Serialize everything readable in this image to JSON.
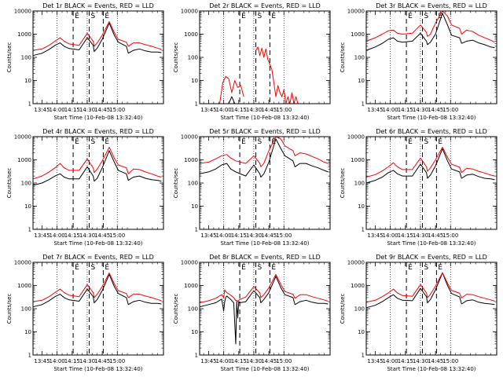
{
  "figure": {
    "xlabel": "Start Time (10-Feb-08 13:32:40)",
    "ylabel": "Counts/sec",
    "xticks": [
      "13:45",
      "14:00",
      "14:15",
      "14:30",
      "14:45",
      "15:00"
    ],
    "yticks": [
      "1",
      "10",
      "100",
      "1000",
      "10000"
    ],
    "flag_labels": [
      "E",
      "S",
      "E"
    ],
    "colors": {
      "events": "#000000",
      "lld": "#ff0000",
      "background": "#ffffff"
    }
  },
  "chart_data": [
    {
      "type": "line",
      "title": "Det 1r BLACK = Events, RED = LLD",
      "x_minutes": [
        36,
        45,
        52,
        58,
        63,
        67,
        72,
        82,
        90,
        96,
        97,
        100,
        105,
        112,
        117,
        121,
        129,
        131,
        136,
        142,
        148,
        154,
        160,
        164
      ],
      "series": [
        {
          "name": "Events",
          "color": "#000000",
          "values": [
            120,
            150,
            220,
            330,
            420,
            300,
            240,
            210,
            700,
            330,
            180,
            250,
            600,
            3000,
            900,
            450,
            300,
            150,
            200,
            230,
            190,
            170,
            170,
            160
          ]
        },
        {
          "name": "LLD",
          "color": "#ff0000",
          "values": [
            200,
            230,
            330,
            500,
            700,
            500,
            380,
            330,
            1100,
            500,
            300,
            420,
            900,
            3500,
            1200,
            600,
            450,
            300,
            420,
            420,
            350,
            300,
            250,
            220
          ]
        }
      ],
      "ylim": [
        1,
        10000
      ],
      "xlim": [
        36,
        166
      ]
    },
    {
      "type": "line",
      "title": "Det 2r BLACK = Events, RED = LLD",
      "x_minutes": [
        36,
        40,
        44,
        47,
        50,
        53,
        56,
        59,
        62,
        65,
        68,
        71,
        74,
        77,
        80,
        82,
        84,
        86,
        88,
        90,
        92,
        94,
        96,
        98,
        100,
        102,
        104,
        106,
        108,
        110,
        112,
        114,
        116,
        118,
        120,
        122,
        124,
        126,
        128,
        130,
        132,
        134,
        136,
        140,
        164
      ],
      "series": [
        {
          "name": "Events",
          "color": "#000000",
          "values": [
            null,
            null,
            null,
            null,
            null,
            null,
            null,
            null,
            null,
            1,
            2,
            1,
            1,
            null,
            null,
            null,
            null,
            null,
            null,
            null,
            null,
            null,
            null,
            null,
            null,
            null,
            null,
            null,
            null,
            null,
            null,
            null,
            null,
            null,
            null,
            null,
            null,
            null,
            null,
            null,
            null,
            null,
            null,
            null,
            null
          ]
        },
        {
          "name": "LLD",
          "color": "#ff0000",
          "values": [
            null,
            null,
            null,
            null,
            null,
            null,
            1,
            8,
            15,
            12,
            3,
            10,
            5,
            6,
            2,
            null,
            null,
            null,
            null,
            null,
            200,
            280,
            120,
            250,
            100,
            230,
            80,
            50,
            30,
            8,
            2,
            6,
            3,
            2,
            4,
            1,
            2,
            1,
            3,
            1,
            2,
            1,
            null,
            null,
            null
          ]
        }
      ],
      "ylim": [
        1,
        10000
      ],
      "xlim": [
        36,
        166
      ]
    },
    {
      "type": "line",
      "title": "Det 3r BLACK = Events, RED = LLD",
      "x_minutes": [
        36,
        45,
        52,
        58,
        63,
        67,
        72,
        82,
        90,
        96,
        97,
        100,
        105,
        112,
        117,
        121,
        129,
        131,
        136,
        142,
        148,
        154,
        160,
        164
      ],
      "series": [
        {
          "name": "Events",
          "color": "#000000",
          "values": [
            200,
            280,
            400,
            600,
            700,
            500,
            450,
            500,
            1100,
            500,
            350,
            450,
            1000,
            8000,
            2500,
            900,
            700,
            400,
            500,
            550,
            420,
            350,
            280,
            260
          ]
        },
        {
          "name": "LLD",
          "color": "#ff0000",
          "values": [
            500,
            700,
            1000,
            1400,
            1500,
            1100,
            1000,
            1100,
            2500,
            1200,
            800,
            1000,
            3000,
            10000,
            6000,
            2500,
            1800,
            1000,
            1500,
            1300,
            900,
            700,
            550,
            450
          ]
        }
      ],
      "ylim": [
        1,
        10000
      ],
      "xlim": [
        36,
        166
      ]
    },
    {
      "type": "line",
      "title": "Det 4r BLACK = Events, RED = LLD",
      "x_minutes": [
        36,
        45,
        52,
        58,
        63,
        67,
        72,
        82,
        90,
        96,
        97,
        100,
        105,
        112,
        117,
        121,
        129,
        131,
        136,
        142,
        148,
        154,
        160,
        164
      ],
      "series": [
        {
          "name": "Events",
          "color": "#000000",
          "values": [
            80,
            100,
            140,
            200,
            250,
            180,
            150,
            150,
            500,
            200,
            120,
            160,
            450,
            2500,
            800,
            350,
            250,
            130,
            180,
            200,
            160,
            140,
            130,
            120
          ]
        },
        {
          "name": "LLD",
          "color": "#ff0000",
          "values": [
            150,
            200,
            300,
            450,
            700,
            450,
            350,
            350,
            1100,
            450,
            280,
            400,
            900,
            3500,
            1200,
            600,
            450,
            250,
            400,
            380,
            300,
            250,
            200,
            180
          ]
        }
      ],
      "ylim": [
        1,
        10000
      ],
      "xlim": [
        36,
        166
      ]
    },
    {
      "type": "line",
      "title": "Det 5r BLACK = Events, RED = LLD",
      "x_minutes": [
        36,
        45,
        52,
        58,
        63,
        67,
        72,
        82,
        90,
        96,
        97,
        100,
        105,
        112,
        117,
        121,
        129,
        131,
        136,
        142,
        148,
        154,
        160,
        164
      ],
      "series": [
        {
          "name": "Events",
          "color": "#000000",
          "values": [
            250,
            300,
            400,
            600,
            700,
            400,
            300,
            200,
            600,
            250,
            180,
            250,
            800,
            8000,
            3000,
            1500,
            900,
            500,
            700,
            700,
            550,
            450,
            350,
            300
          ]
        },
        {
          "name": "LLD",
          "color": "#ff0000",
          "values": [
            700,
            800,
            1100,
            1500,
            1700,
            1200,
            900,
            700,
            1500,
            700,
            500,
            700,
            2500,
            10000,
            8000,
            4000,
            2500,
            1500,
            2000,
            1800,
            1400,
            1100,
            800,
            700
          ]
        }
      ],
      "ylim": [
        1,
        10000
      ],
      "xlim": [
        36,
        166
      ]
    },
    {
      "type": "line",
      "title": "Det 6r BLACK = Events, RED = LLD",
      "x_minutes": [
        36,
        45,
        52,
        58,
        63,
        67,
        72,
        82,
        90,
        96,
        97,
        100,
        105,
        112,
        117,
        121,
        129,
        131,
        136,
        142,
        148,
        154,
        160,
        164
      ],
      "series": [
        {
          "name": "Events",
          "color": "#000000",
          "values": [
            100,
            130,
            180,
            280,
            350,
            250,
            200,
            200,
            650,
            280,
            160,
            220,
            550,
            3000,
            900,
            400,
            300,
            160,
            220,
            240,
            190,
            160,
            150,
            140
          ]
        },
        {
          "name": "LLD",
          "color": "#ff0000",
          "values": [
            180,
            230,
            330,
            500,
            750,
            500,
            380,
            380,
            1200,
            500,
            320,
            450,
            1000,
            3500,
            1300,
            650,
            480,
            280,
            430,
            400,
            320,
            270,
            220,
            200
          ]
        }
      ],
      "ylim": [
        1,
        10000
      ],
      "xlim": [
        36,
        166
      ]
    },
    {
      "type": "line",
      "title": "Det 7r BLACK = Events, RED = LLD",
      "x_minutes": [
        36,
        45,
        52,
        58,
        63,
        67,
        72,
        82,
        90,
        96,
        97,
        100,
        105,
        112,
        117,
        121,
        129,
        131,
        136,
        142,
        148,
        154,
        160,
        164
      ],
      "series": [
        {
          "name": "Events",
          "color": "#000000",
          "values": [
            120,
            150,
            220,
            330,
            420,
            300,
            240,
            210,
            700,
            330,
            180,
            250,
            600,
            3000,
            900,
            450,
            300,
            150,
            200,
            230,
            190,
            170,
            170,
            160
          ]
        },
        {
          "name": "LLD",
          "color": "#ff0000",
          "values": [
            200,
            230,
            330,
            500,
            700,
            500,
            380,
            330,
            1100,
            500,
            300,
            420,
            900,
            3500,
            1200,
            600,
            450,
            300,
            420,
            420,
            350,
            300,
            250,
            220
          ]
        }
      ],
      "ylim": [
        1,
        10000
      ],
      "xlim": [
        36,
        166
      ]
    },
    {
      "type": "line",
      "title": "Det 8r BLACK = Events, RED = LLD",
      "x_minutes": [
        36,
        45,
        52,
        58,
        60,
        61,
        62,
        63,
        67,
        70,
        72,
        73,
        74,
        75,
        76,
        82,
        90,
        96,
        97,
        100,
        105,
        112,
        117,
        121,
        129,
        131,
        136,
        142,
        148,
        154,
        160,
        164
      ],
      "series": [
        {
          "name": "Events",
          "color": "#000000",
          "values": [
            120,
            150,
            180,
            260,
            80,
            200,
            300,
            350,
            250,
            180,
            3,
            200,
            40,
            200,
            180,
            200,
            600,
            300,
            180,
            250,
            500,
            2500,
            800,
            400,
            300,
            150,
            200,
            230,
            190,
            170,
            170,
            160
          ]
        },
        {
          "name": "LLD",
          "color": "#ff0000",
          "values": [
            180,
            220,
            280,
            400,
            300,
            650,
            550,
            500,
            380,
            300,
            220,
            230,
            200,
            230,
            250,
            320,
            900,
            480,
            300,
            400,
            800,
            3000,
            1100,
            550,
            420,
            280,
            400,
            400,
            330,
            280,
            240,
            210
          ]
        }
      ],
      "ylim": [
        1,
        10000
      ],
      "xlim": [
        36,
        166
      ]
    },
    {
      "type": "line",
      "title": "Det 9r BLACK = Events, RED = LLD",
      "x_minutes": [
        36,
        45,
        52,
        58,
        63,
        67,
        72,
        82,
        90,
        96,
        97,
        100,
        105,
        112,
        117,
        121,
        129,
        131,
        136,
        142,
        148,
        154,
        160,
        164
      ],
      "series": [
        {
          "name": "Events",
          "color": "#000000",
          "values": [
            110,
            140,
            200,
            300,
            400,
            280,
            230,
            220,
            750,
            330,
            180,
            250,
            650,
            3500,
            1000,
            450,
            320,
            160,
            220,
            240,
            190,
            170,
            160,
            150
          ]
        },
        {
          "name": "LLD",
          "color": "#ff0000",
          "values": [
            190,
            230,
            330,
            480,
            700,
            480,
            370,
            340,
            1100,
            480,
            300,
            420,
            950,
            3600,
            1250,
            620,
            460,
            290,
            420,
            400,
            330,
            280,
            240,
            210
          ]
        }
      ],
      "ylim": [
        1,
        10000
      ],
      "xlim": [
        36,
        166
      ]
    }
  ]
}
